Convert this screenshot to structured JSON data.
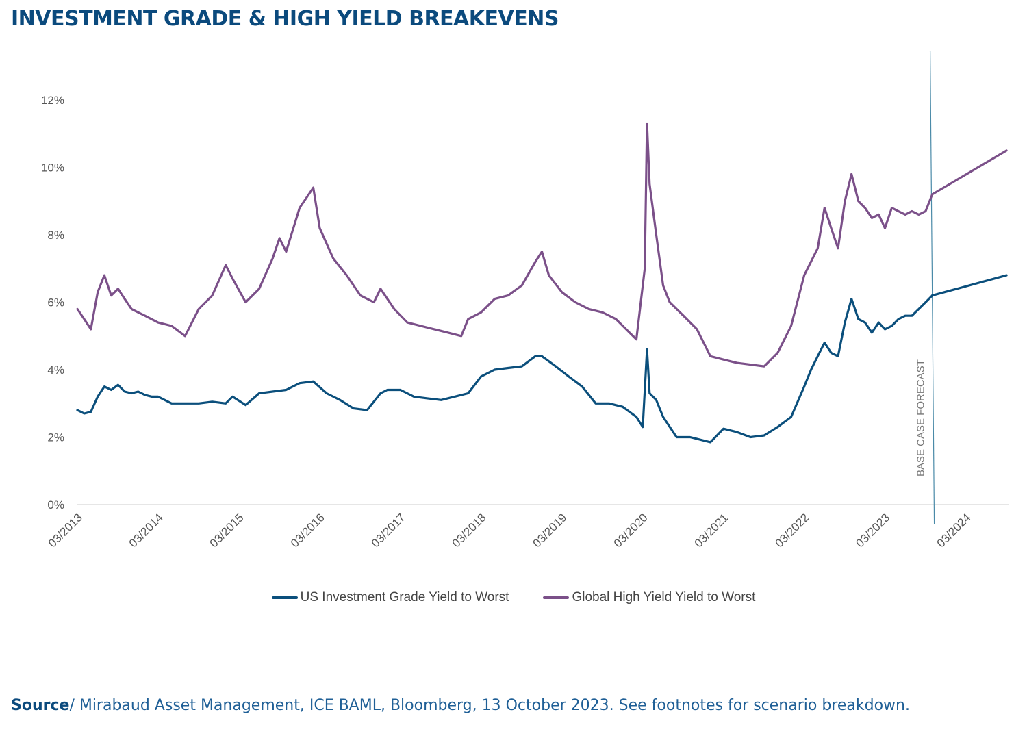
{
  "title": "INVESTMENT GRADE & HIGH YIELD BREAKEVENS",
  "source": {
    "label": "Source",
    "text": "/ Mirabaud Asset Management, ICE BAML, Bloomberg, 13 October 2023. See footnotes for scenario breakdown."
  },
  "colors": {
    "ig": "#0b4f7c",
    "hy": "#7b5089",
    "axis": "#cccccc",
    "marker": "#4a8aa8"
  },
  "chart_data": {
    "type": "line",
    "x_type": "date",
    "ylim": [
      0,
      12
    ],
    "y_ticks": [
      0,
      2,
      4,
      6,
      8,
      10,
      12
    ],
    "y_tick_labels": [
      "0%",
      "2%",
      "4%",
      "6%",
      "8%",
      "10%",
      "12%"
    ],
    "x_ticks": [
      "2013-03",
      "2014-03",
      "2015-03",
      "2016-03",
      "2017-03",
      "2018-03",
      "2019-03",
      "2020-03",
      "2021-03",
      "2022-03",
      "2023-03",
      "2024-03"
    ],
    "x_tick_labels": [
      "03/2013",
      "03/2014",
      "03/2015",
      "03/2016",
      "03/2017",
      "03/2018",
      "03/2019",
      "03/2020",
      "03/2021",
      "03/2022",
      "03/2023",
      "03/2024"
    ],
    "forecast_marker": {
      "date": "2023-10",
      "label": "BASE CASE FORECAST"
    },
    "legend_position": "bottom",
    "series": [
      {
        "name": "US Investment Grade Yield to Worst",
        "color": "#0b4f7c",
        "points": [
          [
            "2013-03",
            2.8
          ],
          [
            "2013-04",
            2.7
          ],
          [
            "2013-05",
            2.75
          ],
          [
            "2013-06",
            3.2
          ],
          [
            "2013-07",
            3.5
          ],
          [
            "2013-08",
            3.4
          ],
          [
            "2013-09",
            3.55
          ],
          [
            "2013-10",
            3.35
          ],
          [
            "2013-11",
            3.3
          ],
          [
            "2013-12",
            3.35
          ],
          [
            "2014-01",
            3.25
          ],
          [
            "2014-02",
            3.2
          ],
          [
            "2014-03",
            3.2
          ],
          [
            "2014-05",
            3.0
          ],
          [
            "2014-07",
            3.0
          ],
          [
            "2014-09",
            3.0
          ],
          [
            "2014-11",
            3.05
          ],
          [
            "2015-01",
            3.0
          ],
          [
            "2015-02",
            3.2
          ],
          [
            "2015-04",
            2.95
          ],
          [
            "2015-06",
            3.3
          ],
          [
            "2015-08",
            3.35
          ],
          [
            "2015-10",
            3.4
          ],
          [
            "2015-12",
            3.6
          ],
          [
            "2016-02",
            3.65
          ],
          [
            "2016-04",
            3.3
          ],
          [
            "2016-06",
            3.1
          ],
          [
            "2016-08",
            2.85
          ],
          [
            "2016-10",
            2.8
          ],
          [
            "2016-12",
            3.3
          ],
          [
            "2017-01",
            3.4
          ],
          [
            "2017-03",
            3.4
          ],
          [
            "2017-05",
            3.2
          ],
          [
            "2017-07",
            3.15
          ],
          [
            "2017-09",
            3.1
          ],
          [
            "2017-11",
            3.2
          ],
          [
            "2018-01",
            3.3
          ],
          [
            "2018-03",
            3.8
          ],
          [
            "2018-05",
            4.0
          ],
          [
            "2018-07",
            4.05
          ],
          [
            "2018-09",
            4.1
          ],
          [
            "2018-11",
            4.4
          ],
          [
            "2018-12",
            4.4
          ],
          [
            "2019-02",
            4.1
          ],
          [
            "2019-04",
            3.8
          ],
          [
            "2019-06",
            3.5
          ],
          [
            "2019-08",
            3.0
          ],
          [
            "2019-10",
            3.0
          ],
          [
            "2019-12",
            2.9
          ],
          [
            "2020-02",
            2.6
          ],
          [
            "2020-03",
            2.3
          ],
          [
            "2020-03-20",
            4.6
          ],
          [
            "2020-04",
            3.3
          ],
          [
            "2020-05",
            3.1
          ],
          [
            "2020-06",
            2.6
          ],
          [
            "2020-08",
            2.0
          ],
          [
            "2020-10",
            2.0
          ],
          [
            "2020-12",
            1.9
          ],
          [
            "2021-01",
            1.85
          ],
          [
            "2021-03",
            2.25
          ],
          [
            "2021-05",
            2.15
          ],
          [
            "2021-07",
            2.0
          ],
          [
            "2021-09",
            2.05
          ],
          [
            "2021-11",
            2.3
          ],
          [
            "2022-01",
            2.6
          ],
          [
            "2022-03",
            3.5
          ],
          [
            "2022-04",
            4.0
          ],
          [
            "2022-05",
            4.4
          ],
          [
            "2022-06",
            4.8
          ],
          [
            "2022-07",
            4.5
          ],
          [
            "2022-08",
            4.4
          ],
          [
            "2022-09",
            5.4
          ],
          [
            "2022-10",
            6.1
          ],
          [
            "2022-11",
            5.5
          ],
          [
            "2022-12",
            5.4
          ],
          [
            "2023-01",
            5.1
          ],
          [
            "2023-02",
            5.4
          ],
          [
            "2023-03",
            5.2
          ],
          [
            "2023-04",
            5.3
          ],
          [
            "2023-05",
            5.5
          ],
          [
            "2023-06",
            5.6
          ],
          [
            "2023-07",
            5.6
          ],
          [
            "2023-08",
            5.8
          ],
          [
            "2023-09",
            6.0
          ],
          [
            "2023-10",
            6.2
          ]
        ],
        "forecast": [
          [
            "2023-10",
            6.2
          ],
          [
            "2024-09",
            6.8
          ]
        ]
      },
      {
        "name": "Global High Yield Yield to Worst",
        "color": "#7b5089",
        "points": [
          [
            "2013-03",
            5.8
          ],
          [
            "2013-04",
            5.5
          ],
          [
            "2013-05",
            5.2
          ],
          [
            "2013-06",
            6.3
          ],
          [
            "2013-07",
            6.8
          ],
          [
            "2013-08",
            6.2
          ],
          [
            "2013-09",
            6.4
          ],
          [
            "2013-10",
            6.1
          ],
          [
            "2013-11",
            5.8
          ],
          [
            "2013-12",
            5.7
          ],
          [
            "2014-01",
            5.6
          ],
          [
            "2014-03",
            5.4
          ],
          [
            "2014-05",
            5.3
          ],
          [
            "2014-07",
            5.0
          ],
          [
            "2014-09",
            5.8
          ],
          [
            "2014-11",
            6.2
          ],
          [
            "2015-01",
            7.1
          ],
          [
            "2015-02",
            6.7
          ],
          [
            "2015-04",
            6.0
          ],
          [
            "2015-06",
            6.4
          ],
          [
            "2015-08",
            7.3
          ],
          [
            "2015-09",
            7.9
          ],
          [
            "2015-10",
            7.5
          ],
          [
            "2015-12",
            8.8
          ],
          [
            "2016-02",
            9.4
          ],
          [
            "2016-03",
            8.2
          ],
          [
            "2016-05",
            7.3
          ],
          [
            "2016-07",
            6.8
          ],
          [
            "2016-09",
            6.2
          ],
          [
            "2016-11",
            6.0
          ],
          [
            "2016-12",
            6.4
          ],
          [
            "2017-02",
            5.8
          ],
          [
            "2017-04",
            5.4
          ],
          [
            "2017-06",
            5.3
          ],
          [
            "2017-08",
            5.2
          ],
          [
            "2017-10",
            5.1
          ],
          [
            "2017-12",
            5.0
          ],
          [
            "2018-01",
            5.5
          ],
          [
            "2018-03",
            5.7
          ],
          [
            "2018-05",
            6.1
          ],
          [
            "2018-07",
            6.2
          ],
          [
            "2018-09",
            6.5
          ],
          [
            "2018-11",
            7.2
          ],
          [
            "2018-12",
            7.5
          ],
          [
            "2019-01",
            6.8
          ],
          [
            "2019-03",
            6.3
          ],
          [
            "2019-05",
            6.0
          ],
          [
            "2019-07",
            5.8
          ],
          [
            "2019-09",
            5.7
          ],
          [
            "2019-11",
            5.5
          ],
          [
            "2020-01",
            5.1
          ],
          [
            "2020-02",
            4.9
          ],
          [
            "2020-03-10",
            7.0
          ],
          [
            "2020-03-20",
            11.3
          ],
          [
            "2020-04",
            9.5
          ],
          [
            "2020-05",
            8.0
          ],
          [
            "2020-06",
            6.5
          ],
          [
            "2020-07",
            6.0
          ],
          [
            "2020-09",
            5.6
          ],
          [
            "2020-11",
            5.2
          ],
          [
            "2021-01",
            4.4
          ],
          [
            "2021-03",
            4.3
          ],
          [
            "2021-05",
            4.2
          ],
          [
            "2021-07",
            4.15
          ],
          [
            "2021-09",
            4.1
          ],
          [
            "2021-11",
            4.5
          ],
          [
            "2022-01",
            5.3
          ],
          [
            "2022-03",
            6.8
          ],
          [
            "2022-05",
            7.6
          ],
          [
            "2022-06",
            8.8
          ],
          [
            "2022-07",
            8.2
          ],
          [
            "2022-08",
            7.6
          ],
          [
            "2022-09",
            9.0
          ],
          [
            "2022-10",
            9.8
          ],
          [
            "2022-11",
            9.0
          ],
          [
            "2022-12",
            8.8
          ],
          [
            "2023-01",
            8.5
          ],
          [
            "2023-02",
            8.6
          ],
          [
            "2023-03",
            8.2
          ],
          [
            "2023-04",
            8.8
          ],
          [
            "2023-05",
            8.7
          ],
          [
            "2023-06",
            8.6
          ],
          [
            "2023-07",
            8.7
          ],
          [
            "2023-08",
            8.6
          ],
          [
            "2023-09",
            8.7
          ],
          [
            "2023-10",
            9.2
          ]
        ],
        "forecast": [
          [
            "2023-10",
            9.2
          ],
          [
            "2024-09",
            10.5
          ]
        ]
      }
    ]
  }
}
